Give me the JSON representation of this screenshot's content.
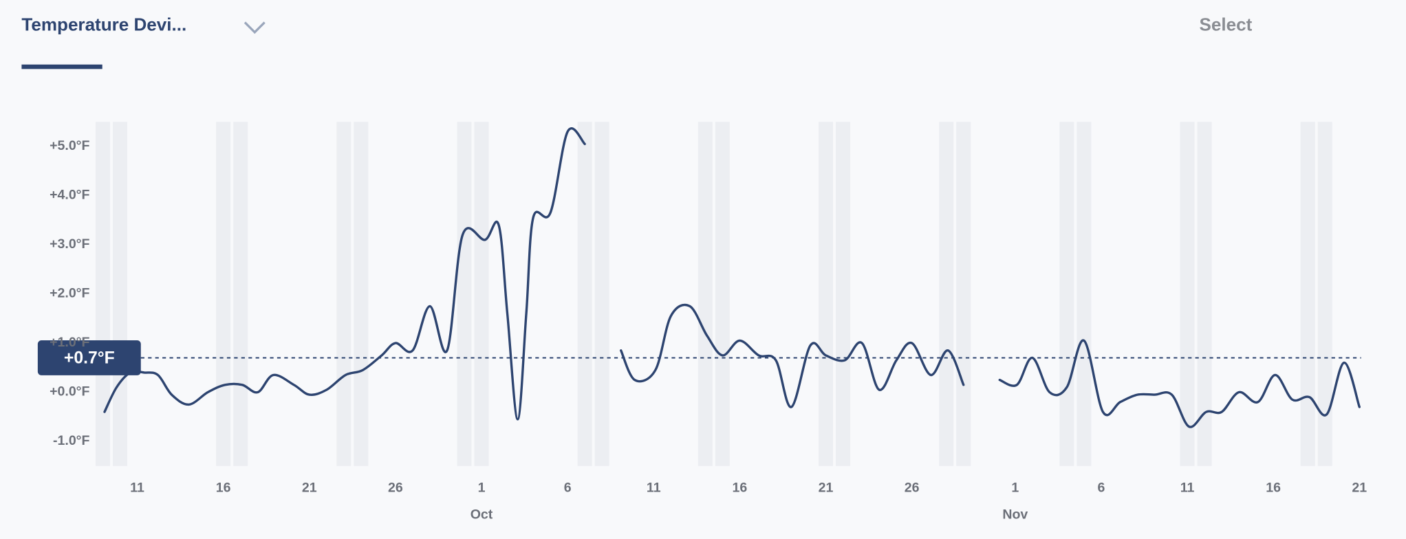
{
  "header": {
    "tab": "Temperature Devi...",
    "select": "Select"
  },
  "chart_data": {
    "type": "line",
    "x": [
      9.1,
      9.8,
      10.6,
      11.4,
      12.2,
      13.0,
      14.0,
      15.1,
      16.1,
      17.1,
      18.0,
      18.9,
      20.1,
      21.0,
      22.0,
      23.1,
      24.1,
      25.2,
      26.0,
      27.0,
      28.0,
      29.0,
      29.9,
      31.2,
      32.0,
      32.5,
      33.1,
      33.6,
      34.0,
      35.0,
      36.0,
      37.0,
      38.0,
      39.1,
      39.9,
      41.1,
      42.0,
      43.1,
      44.1,
      45.0,
      46.0,
      47.1,
      48.1,
      49.0,
      50.1,
      51.0,
      52.1,
      53.1,
      54.1,
      55.1,
      56.0,
      57.1,
      58.1,
      59.0,
      60.0,
      61.1,
      62.1,
      63.0,
      64.0,
      65.0,
      66.0,
      67.1,
      68.1,
      69.1,
      70.1,
      71.1,
      72.1,
      73.1,
      74.0,
      75.0,
      76.1,
      77.1,
      78.1,
      79.1,
      80.1,
      81.1,
      82.0
    ],
    "values": [
      -0.4,
      0.1,
      0.4,
      0.4,
      0.35,
      -0.05,
      -0.25,
      0.0,
      0.15,
      0.15,
      0.0,
      0.35,
      0.15,
      -0.05,
      0.05,
      0.35,
      0.45,
      0.75,
      1.0,
      0.85,
      1.75,
      0.85,
      3.2,
      3.1,
      3.4,
      1.6,
      -0.55,
      1.6,
      3.55,
      3.65,
      5.3,
      5.05,
      null,
      0.85,
      0.25,
      0.45,
      1.55,
      1.75,
      1.15,
      0.75,
      1.05,
      0.75,
      0.65,
      -0.3,
      0.95,
      0.75,
      0.65,
      1.0,
      0.05,
      0.65,
      1.0,
      0.35,
      0.85,
      0.15,
      null,
      0.25,
      0.15,
      0.7,
      0.0,
      0.1,
      1.05,
      -0.4,
      -0.2,
      -0.05,
      -0.05,
      -0.05,
      -0.7,
      -0.4,
      -0.4,
      0.0,
      -0.2,
      0.35,
      -0.15,
      -0.1,
      -0.45,
      0.6,
      -0.3
    ],
    "color": "#2d4470",
    "xlim": [
      8.6,
      82.2
    ],
    "xticks": [
      {
        "value": 11,
        "label": "11"
      },
      {
        "value": 16,
        "label": "16"
      },
      {
        "value": 21,
        "label": "21"
      },
      {
        "value": 26,
        "label": "26"
      },
      {
        "value": 31,
        "label": "1"
      },
      {
        "value": 36,
        "label": "6"
      },
      {
        "value": 41,
        "label": "11"
      },
      {
        "value": 46,
        "label": "16"
      },
      {
        "value": 51,
        "label": "21"
      },
      {
        "value": 56,
        "label": "26"
      },
      {
        "value": 62,
        "label": "1"
      },
      {
        "value": 67,
        "label": "6"
      },
      {
        "value": 72,
        "label": "11"
      },
      {
        "value": 77,
        "label": "16"
      },
      {
        "value": 82,
        "label": "21"
      }
    ],
    "month_ticks": [
      {
        "value": 31,
        "label": "Oct"
      },
      {
        "value": 62,
        "label": "Nov"
      }
    ],
    "weekend_days": [
      9,
      10,
      16,
      17,
      23,
      24,
      30,
      31,
      37,
      38,
      44,
      45,
      51,
      52,
      58,
      59,
      65,
      66,
      72,
      73,
      79,
      80
    ],
    "ylim": [
      -1.5,
      5.5
    ],
    "yticks": [
      {
        "value": -1,
        "label": "-1.0°F"
      },
      {
        "value": 0,
        "label": "+0.0°F"
      },
      {
        "value": 1,
        "label": "+1.0°F"
      },
      {
        "value": 2,
        "label": "+2.0°F"
      },
      {
        "value": 3,
        "label": "+3.0°F"
      },
      {
        "value": 4,
        "label": "+4.0°F"
      },
      {
        "value": 5,
        "label": "+5.0°F"
      }
    ],
    "reference_line": {
      "value": 0.7,
      "label": "+0.7°F"
    }
  }
}
